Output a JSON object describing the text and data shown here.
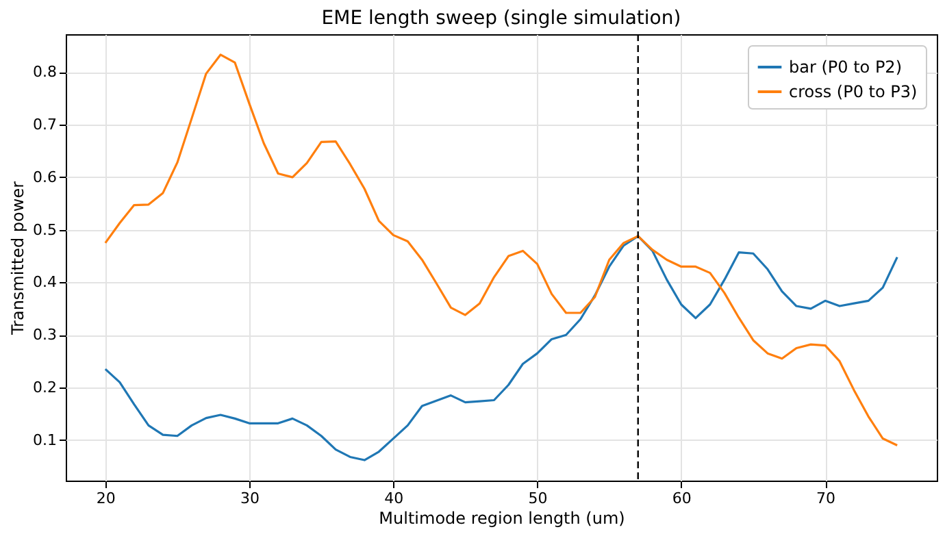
{
  "chart_data": {
    "type": "line",
    "title": "EME length sweep (single simulation)",
    "xlabel": "Multimode region length (um)",
    "ylabel": "Transmitted power",
    "x": [
      20,
      21,
      22,
      23,
      24,
      25,
      26,
      27,
      28,
      29,
      30,
      31,
      32,
      33,
      34,
      35,
      36,
      37,
      38,
      39,
      40,
      41,
      42,
      43,
      44,
      45,
      46,
      47,
      48,
      49,
      50,
      51,
      52,
      53,
      54,
      55,
      56,
      57,
      58,
      59,
      60,
      61,
      62,
      63,
      64,
      65,
      66,
      67,
      68,
      69,
      70,
      71,
      72,
      73,
      74,
      75
    ],
    "series": [
      {
        "name": "bar (P0 to P2)",
        "color": "#1f77b4",
        "values": [
          0.235,
          0.21,
          0.168,
          0.128,
          0.11,
          0.108,
          0.128,
          0.142,
          0.148,
          0.141,
          0.132,
          0.132,
          0.132,
          0.141,
          0.128,
          0.108,
          0.082,
          0.068,
          0.062,
          0.078,
          0.103,
          0.128,
          0.165,
          0.175,
          0.185,
          0.172,
          0.174,
          0.176,
          0.205,
          0.245,
          0.265,
          0.292,
          0.3,
          0.33,
          0.375,
          0.43,
          0.47,
          0.488,
          0.46,
          0.405,
          0.358,
          0.332,
          0.358,
          0.405,
          0.457,
          0.455,
          0.425,
          0.383,
          0.355,
          0.35,
          0.365,
          0.355,
          0.36,
          0.365,
          0.39,
          0.448
        ]
      },
      {
        "name": "cross (P0 to P3)",
        "color": "#ff7f0e",
        "values": [
          0.475,
          0.513,
          0.547,
          0.548,
          0.57,
          0.628,
          0.712,
          0.797,
          0.833,
          0.818,
          0.74,
          0.665,
          0.607,
          0.6,
          0.627,
          0.667,
          0.668,
          0.625,
          0.578,
          0.517,
          0.49,
          0.478,
          0.443,
          0.398,
          0.352,
          0.338,
          0.36,
          0.41,
          0.45,
          0.46,
          0.435,
          0.378,
          0.342,
          0.342,
          0.372,
          0.443,
          0.475,
          0.488,
          0.462,
          0.443,
          0.43,
          0.43,
          0.418,
          0.38,
          0.333,
          0.29,
          0.265,
          0.255,
          0.275,
          0.282,
          0.28,
          0.25,
          0.195,
          0.145,
          0.103,
          0.09
        ]
      }
    ],
    "xlim": [
      17.25,
      77.75
    ],
    "xticks": [
      20,
      30,
      40,
      50,
      60,
      70
    ],
    "ylim": [
      0.023,
      0.872
    ],
    "yticks": [
      0.1,
      0.2,
      0.3,
      0.4,
      0.5,
      0.6,
      0.7,
      0.8
    ],
    "ref_lines": [
      {
        "axis": "x",
        "value": 57,
        "color": "#000000",
        "line_style": "dashed"
      }
    ],
    "grid": true,
    "legend": "top right",
    "line_style": "solid"
  }
}
